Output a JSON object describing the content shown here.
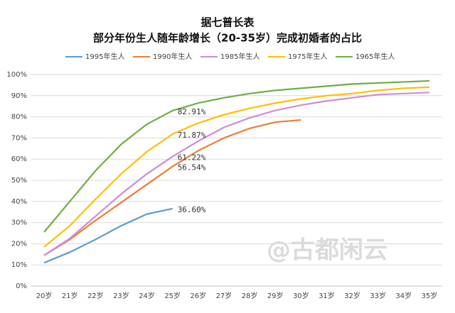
{
  "chart_data": {
    "type": "line",
    "title": "据七普长表",
    "subtitle": "部分年份生人随年龄增长（20-35岁）完成初婚者的占比",
    "watermark": "@古都闲云",
    "categories": [
      "20岁",
      "21岁",
      "22岁",
      "23岁",
      "24岁",
      "25岁",
      "26岁",
      "27岁",
      "28岁",
      "29岁",
      "30岁",
      "31岁",
      "32岁",
      "33岁",
      "34岁",
      "35岁"
    ],
    "series": [
      {
        "name": "1995年生人",
        "color": "#5b9bd5",
        "values": [
          11,
          16,
          22,
          28.5,
          34,
          36.6,
          null,
          null,
          null,
          null,
          null,
          null,
          null,
          null,
          null,
          null
        ],
        "value_labels": [
          null,
          null,
          null,
          null,
          null,
          "36.60%",
          null,
          null,
          null,
          null,
          null,
          null,
          null,
          null,
          null,
          null
        ]
      },
      {
        "name": "1990年生人",
        "color": "#ed7d31",
        "values": [
          14.5,
          22,
          31,
          39.5,
          48,
          56.54,
          64,
          70,
          74.5,
          77.5,
          78.5,
          null,
          null,
          null,
          null,
          null
        ],
        "value_labels": [
          null,
          null,
          null,
          null,
          null,
          "56.54%",
          null,
          null,
          null,
          null,
          null,
          null,
          null,
          null,
          null,
          null
        ]
      },
      {
        "name": "1985年生人",
        "color": "#cc8ddb",
        "values": [
          14.5,
          22.5,
          33,
          43.5,
          53,
          61.22,
          68.5,
          75,
          79.5,
          83,
          85.5,
          87.5,
          89,
          90.5,
          91,
          91.5
        ],
        "value_labels": [
          null,
          null,
          null,
          null,
          null,
          "61.22%",
          null,
          null,
          null,
          null,
          null,
          null,
          null,
          null,
          null,
          null
        ]
      },
      {
        "name": "1975年生人",
        "color": "#ffc000",
        "values": [
          18.5,
          28.5,
          41,
          53,
          63.5,
          71.87,
          77,
          81,
          84,
          86.5,
          88.5,
          90,
          91,
          92.5,
          93.5,
          94
        ],
        "value_labels": [
          null,
          null,
          null,
          null,
          null,
          "71.87%",
          null,
          null,
          null,
          null,
          null,
          null,
          null,
          null,
          null,
          null
        ]
      },
      {
        "name": "1965年生人",
        "color": "#70ad47",
        "values": [
          25.5,
          40,
          54.5,
          67,
          76.5,
          82.91,
          86.5,
          89,
          91,
          92.5,
          93.5,
          94.5,
          95.5,
          96,
          96.5,
          97
        ],
        "value_labels": [
          null,
          null,
          null,
          null,
          null,
          "82.91%",
          null,
          null,
          null,
          null,
          null,
          null,
          null,
          null,
          null,
          null
        ]
      }
    ],
    "ylim": [
      0,
      100
    ],
    "yticks": [
      {
        "value": 0,
        "label": "0%"
      },
      {
        "value": 10,
        "label": "10%"
      },
      {
        "value": 20,
        "label": "20%"
      },
      {
        "value": 30,
        "label": "30%"
      },
      {
        "value": 40,
        "label": "40%"
      },
      {
        "value": 50,
        "label": "50%"
      },
      {
        "value": 60,
        "label": "60%"
      },
      {
        "value": 70,
        "label": "70%"
      },
      {
        "value": 80,
        "label": "80%"
      },
      {
        "value": 90,
        "label": "90%"
      },
      {
        "value": 100,
        "label": "100%"
      }
    ],
    "grid": true,
    "legend": "top"
  }
}
